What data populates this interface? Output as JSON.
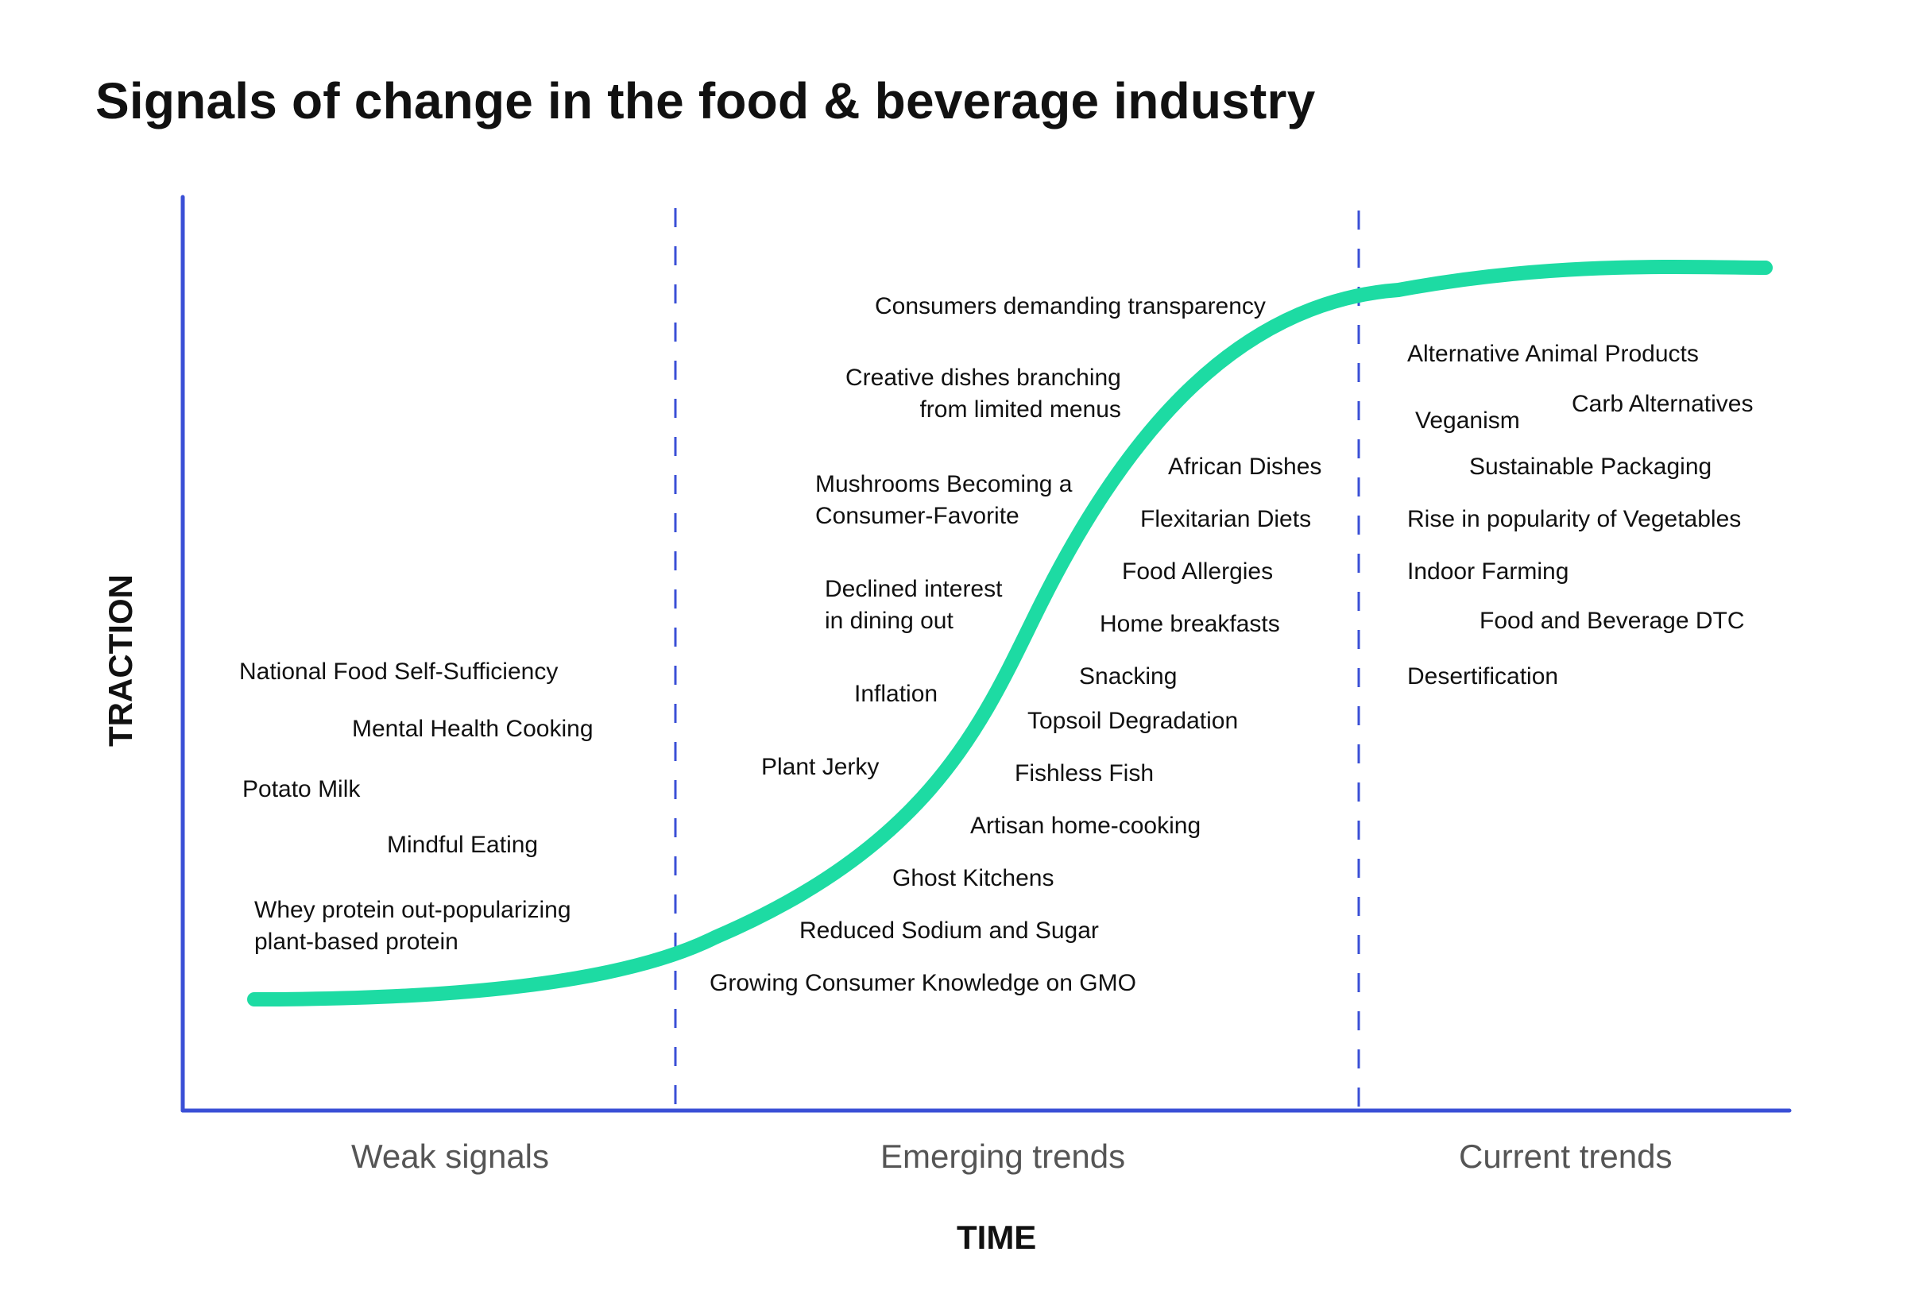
{
  "title": "Signals of change in the food & beverage industry",
  "axes": {
    "y_label": "TRACTION",
    "x_label": "TIME"
  },
  "phases": [
    {
      "label": "Weak signals"
    },
    {
      "label": "Emerging trends"
    },
    {
      "label": "Current trends"
    }
  ],
  "colors": {
    "axis": "#3a4fd6",
    "curve": "#1ddba3",
    "text": "#111111",
    "phase_text": "#555555"
  },
  "weak_signals": [
    {
      "lines": [
        "National Food Self-Sufficiency"
      ]
    },
    {
      "lines": [
        "Mental Health Cooking"
      ]
    },
    {
      "lines": [
        "Potato Milk"
      ]
    },
    {
      "lines": [
        "Mindful Eating"
      ]
    },
    {
      "lines": [
        "Whey protein out-popularizing",
        "plant-based protein"
      ]
    }
  ],
  "emerging_trends": [
    {
      "lines": [
        "Consumers demanding transparency"
      ]
    },
    {
      "lines": [
        "Creative dishes branching",
        "from limited menus"
      ]
    },
    {
      "lines": [
        "Mushrooms Becoming a",
        "Consumer-Favorite"
      ]
    },
    {
      "lines": [
        "Declined interest",
        "in dining out"
      ]
    },
    {
      "lines": [
        "Inflation"
      ]
    },
    {
      "lines": [
        "Plant Jerky"
      ]
    },
    {
      "lines": [
        "African Dishes"
      ]
    },
    {
      "lines": [
        "Flexitarian Diets"
      ]
    },
    {
      "lines": [
        "Food Allergies"
      ]
    },
    {
      "lines": [
        "Home breakfasts"
      ]
    },
    {
      "lines": [
        "Snacking"
      ]
    },
    {
      "lines": [
        "Topsoil Degradation"
      ]
    },
    {
      "lines": [
        "Fishless Fish"
      ]
    },
    {
      "lines": [
        "Artisan home-cooking"
      ]
    },
    {
      "lines": [
        "Ghost Kitchens"
      ]
    },
    {
      "lines": [
        "Reduced Sodium and Sugar"
      ]
    },
    {
      "lines": [
        "Growing Consumer Knowledge on GMO"
      ]
    }
  ],
  "current_trends": [
    {
      "lines": [
        "Alternative Animal Products"
      ]
    },
    {
      "lines": [
        "Veganism"
      ]
    },
    {
      "lines": [
        "Carb Alternatives"
      ]
    },
    {
      "lines": [
        "Sustainable Packaging"
      ]
    },
    {
      "lines": [
        "Rise in popularity of Vegetables"
      ]
    },
    {
      "lines": [
        "Indoor Farming"
      ]
    },
    {
      "lines": [
        "Food and Beverage DTC"
      ]
    },
    {
      "lines": [
        "Desertification"
      ]
    }
  ]
}
